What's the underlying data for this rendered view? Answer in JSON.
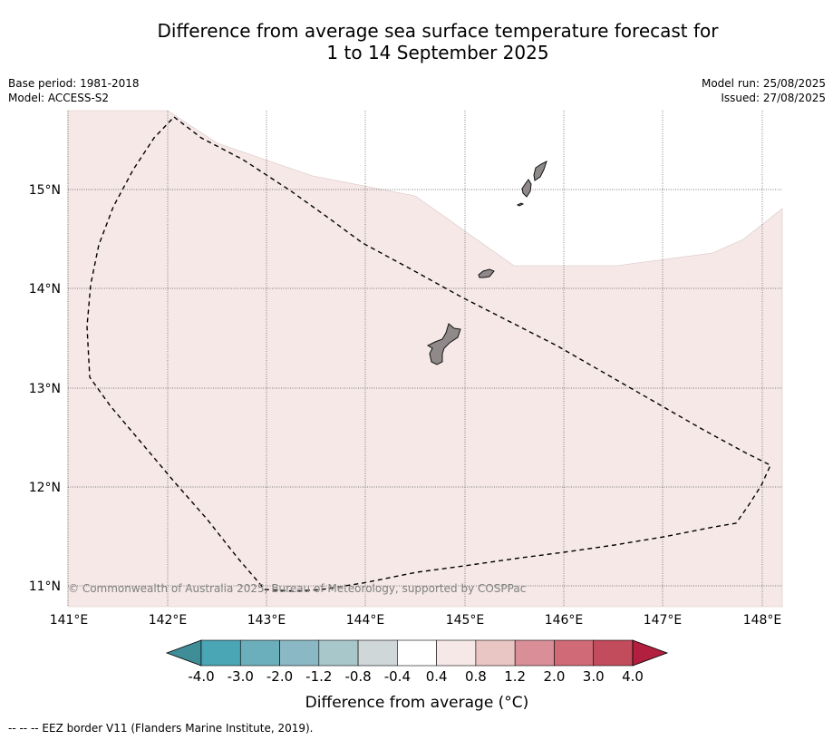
{
  "title": {
    "line1": "Difference from average sea surface temperature forecast for",
    "line2": "1 to 14 September 2025"
  },
  "meta_left": {
    "base_period": "Base period: 1981-2018",
    "model": "Model: ACCESS-S2"
  },
  "meta_right": {
    "model_run": "Model run: 25/08/2025",
    "issued": "Issued: 27/08/2025"
  },
  "map": {
    "lon_labels": [
      "141°E",
      "142°E",
      "143°E",
      "144°E",
      "145°E",
      "146°E",
      "147°E",
      "148°E"
    ],
    "lat_labels": [
      "15°N",
      "14°N",
      "13°N",
      "12°N",
      "11°N"
    ],
    "copyright": "© Commonwealth of Australia 2025, Bureau of Meteorology, supported by COSPPac",
    "anomaly_fill_color": "#f5e8e7",
    "land_color": "#8f8a89"
  },
  "colorbar": {
    "labels": [
      "-4.0",
      "-3.0",
      "-2.0",
      "-1.2",
      "-0.8",
      "-0.4",
      "0.4",
      "0.8",
      "1.2",
      "2.0",
      "3.0",
      "4.0"
    ],
    "colors": [
      "#3f8d97",
      "#4aa5b5",
      "#6cafbc",
      "#8ab8c4",
      "#a8c7cb",
      "#d0d7d9",
      "#ffffff",
      "#f5e8e7",
      "#e9c6c4",
      "#da8e97",
      "#d06a76",
      "#c24c5c",
      "#b31f3e"
    ],
    "label": "Difference from average (°C)"
  },
  "footnote": "--  --  -- EEZ border V11 (Flanders Marine Institute, 2019)."
}
